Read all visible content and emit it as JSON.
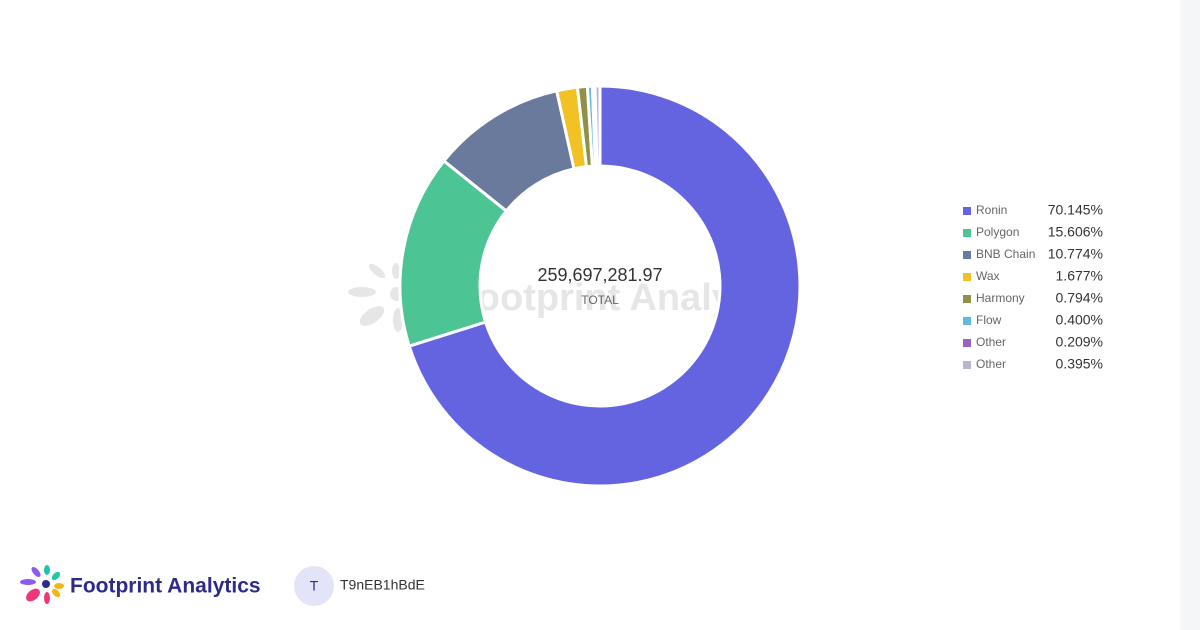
{
  "chart_data": {
    "type": "pie",
    "center_text": "259,697,281.97",
    "center_label": "TOTAL",
    "watermark": "Footprint Analytics",
    "categories": [
      "Ronin",
      "Polygon",
      "BNB Chain",
      "Wax",
      "Harmony",
      "Flow",
      "Other",
      "Other"
    ],
    "values": [
      70.145,
      15.606,
      10.774,
      1.677,
      0.794,
      0.4,
      0.209,
      0.395
    ],
    "value_labels": [
      "70.145%",
      "15.606%",
      "10.774%",
      "1.677%",
      "0.794%",
      "0.400%",
      "0.209%",
      "0.395%"
    ],
    "colors": [
      "#6464e0",
      "#4cc493",
      "#6a7a9c",
      "#f2c123",
      "#8f9148",
      "#62b9dc",
      "#9a63c4",
      "#b8b6c8"
    ]
  },
  "footer": {
    "brand": "Footprint Analytics",
    "avatar": "T",
    "user": "T9nEB1hBdE"
  }
}
